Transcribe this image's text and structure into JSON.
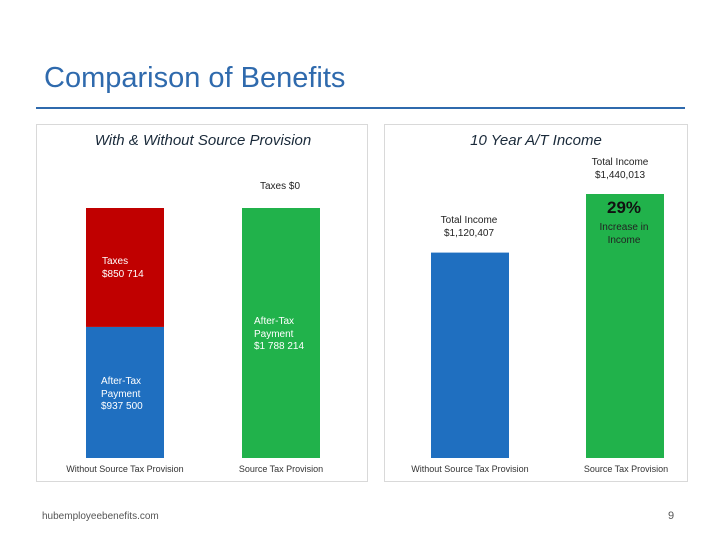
{
  "title": "Comparison of Benefits",
  "footer": {
    "site": "hubemployeebenefits.com",
    "page": "9"
  },
  "colors": {
    "taxes": "#c00000",
    "after_tax": "#1f6fc0",
    "source": "#21b24b",
    "title": "#2f6aad"
  },
  "chart_data": [
    {
      "type": "bar",
      "stacked": true,
      "title": "With & Without Source Provision",
      "categories": [
        "Without Source Tax Provision",
        "Source Tax Provision"
      ],
      "series": [
        {
          "name": "After-Tax Payment",
          "values": [
            937500,
            1788214
          ]
        },
        {
          "name": "Taxes",
          "values": [
            850714,
            0
          ]
        }
      ],
      "labels": {
        "taxes_without": [
          "Taxes",
          "$850 714"
        ],
        "after_tax_without": [
          "After-Tax",
          "Payment",
          "$937 500"
        ],
        "taxes_with": [
          "Taxes $0"
        ],
        "after_tax_with": [
          "After-Tax",
          "Payment",
          "$1 788 214"
        ]
      },
      "ylim": [
        0,
        1788214
      ]
    },
    {
      "type": "bar",
      "title": "10 Year A/T Income",
      "categories": [
        "Without Source Tax Provision",
        "Source Tax Provision"
      ],
      "values": [
        1120407,
        1440013
      ],
      "labels": {
        "total_without": [
          "Total Income",
          "$1,120,407"
        ],
        "total_with": [
          "Total Income",
          "$1,440,013"
        ],
        "increase_pct": "29%",
        "increase_text": [
          "Increase in",
          "Income"
        ]
      },
      "ylim": [
        0,
        1440013
      ]
    }
  ]
}
